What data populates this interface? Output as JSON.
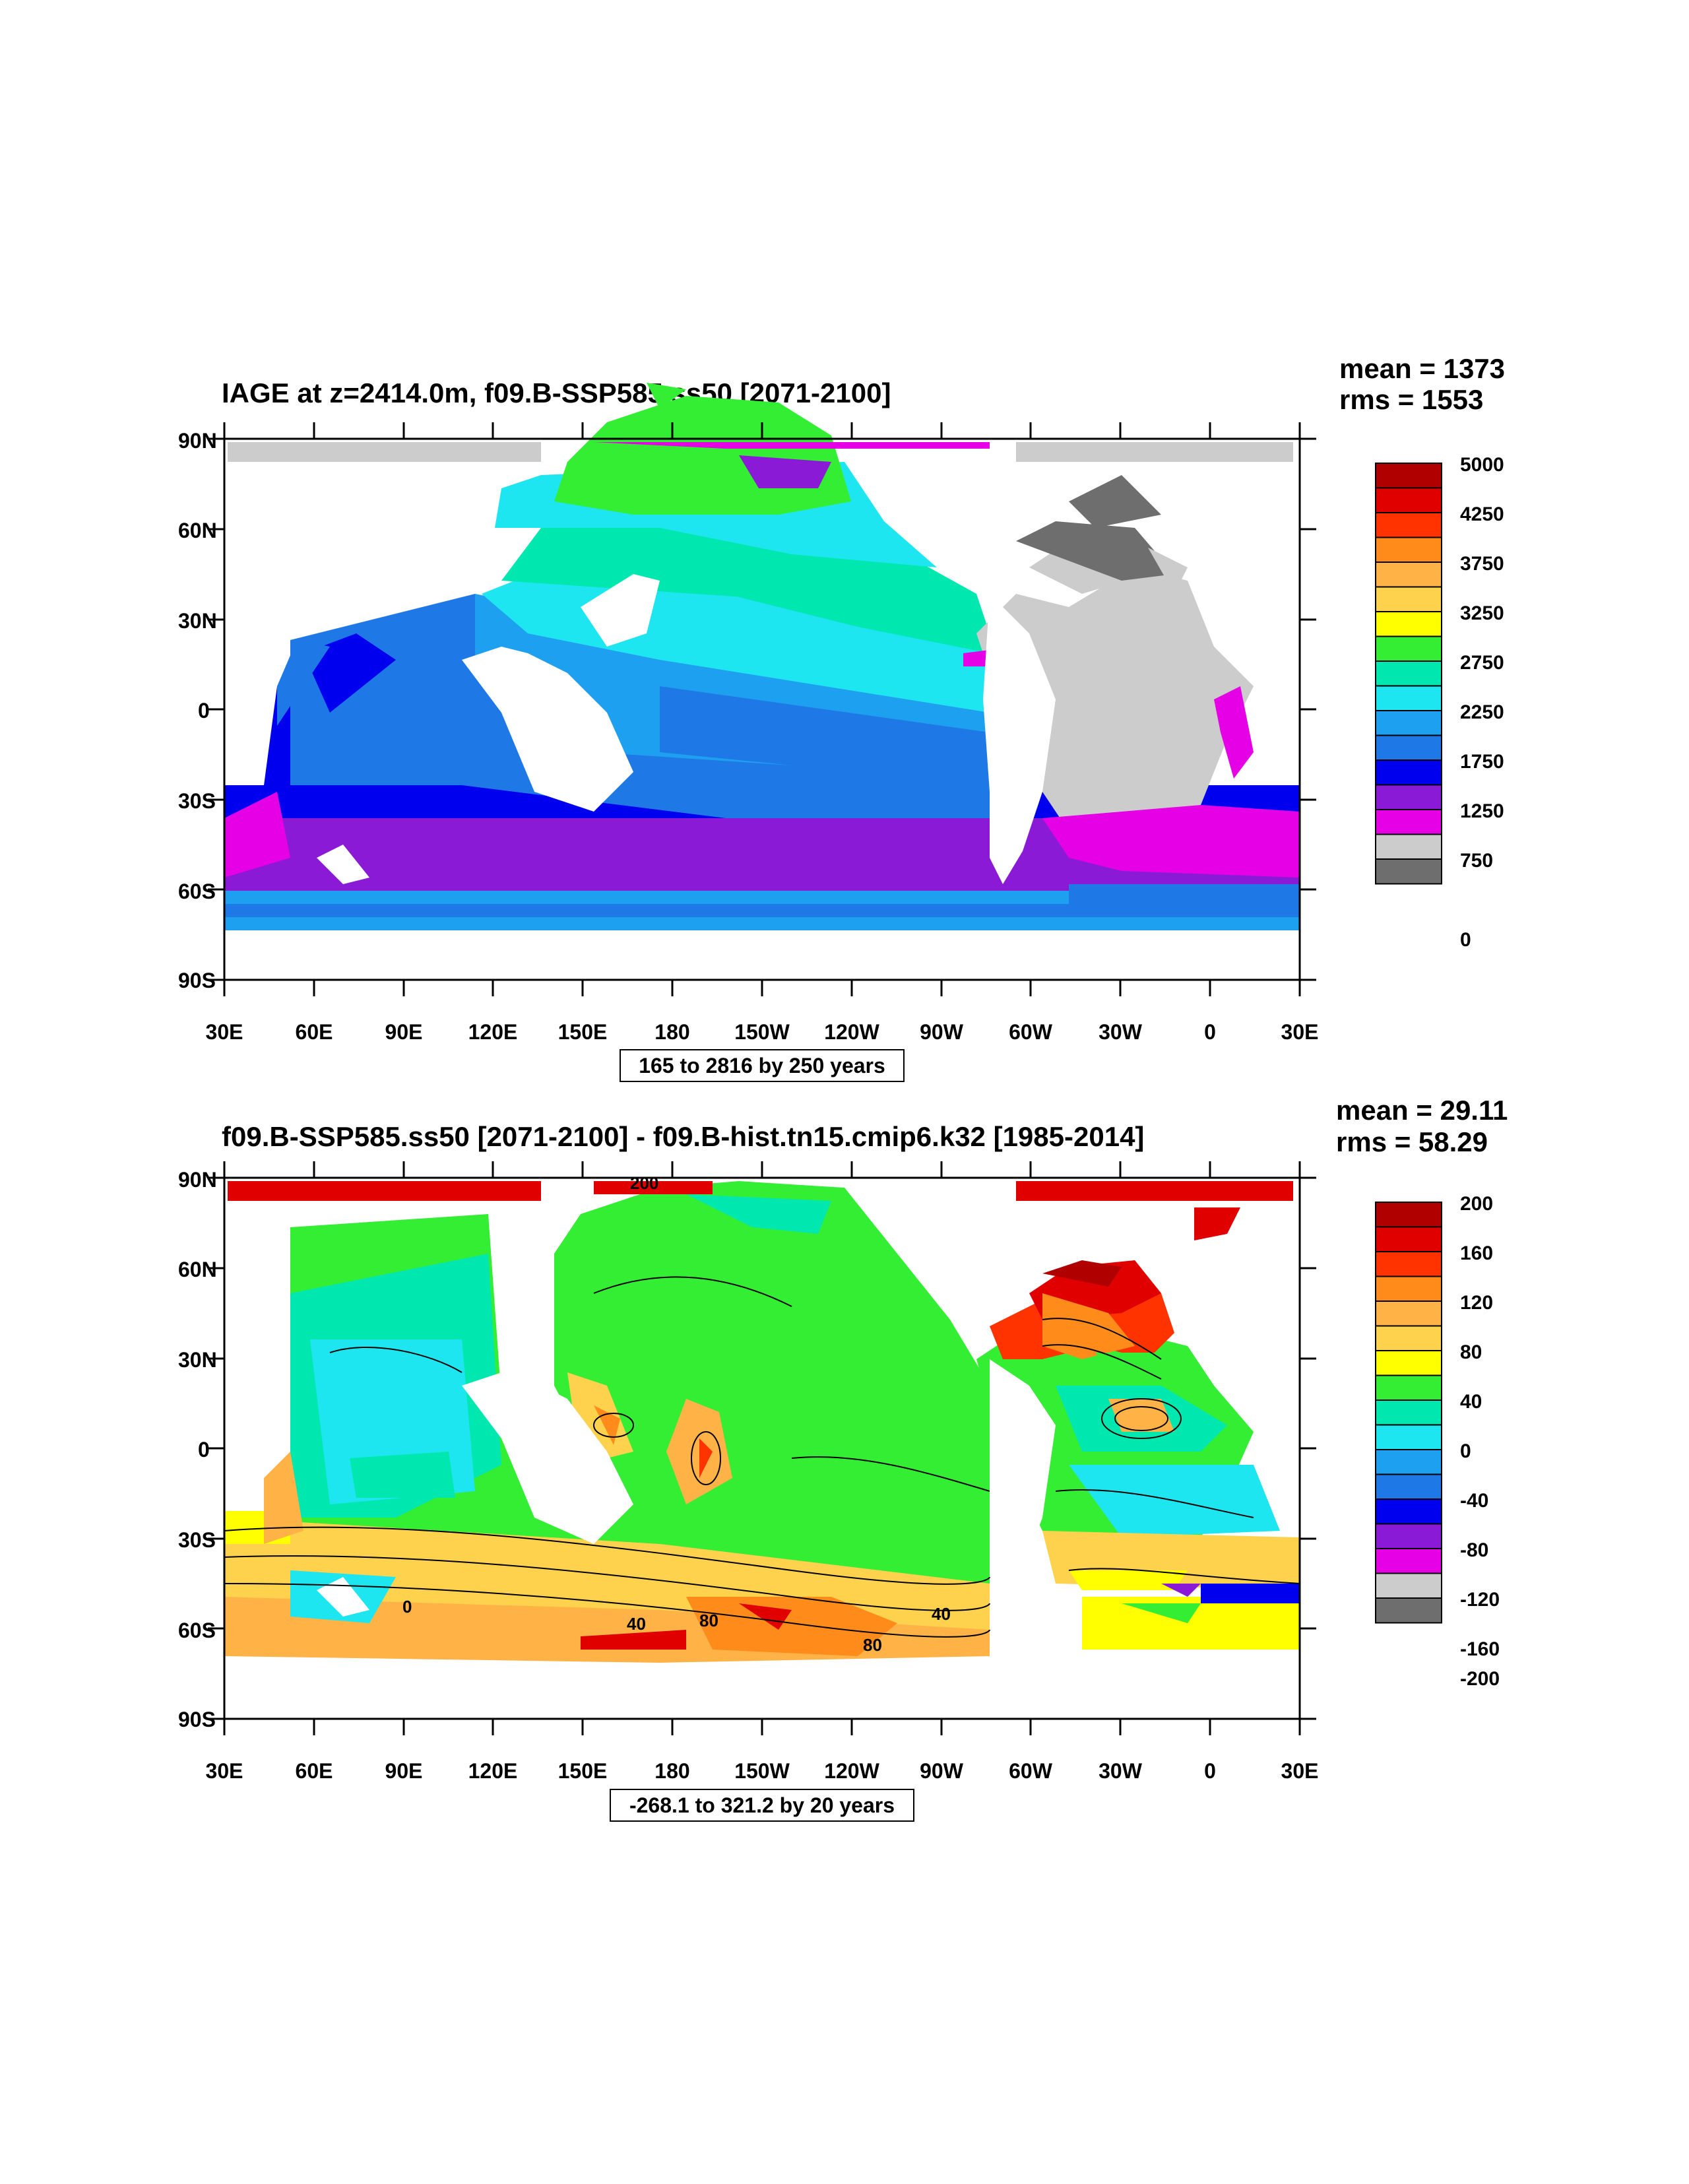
{
  "panels": [
    {
      "title": "IAGE at z=2414.0m, f09.B-SSP585.ss50 [2071-2100]",
      "stats": {
        "mean": "mean = 1373",
        "rms": "rms = 1553"
      },
      "lat_labels": [
        "90N",
        "60N",
        "30N",
        "0",
        "30S",
        "60S",
        "90S"
      ],
      "lon_labels": [
        "30E",
        "60E",
        "90E",
        "120E",
        "150E",
        "180",
        "150W",
        "120W",
        "90W",
        "60W",
        "30W",
        "0",
        "30E"
      ],
      "contour_info": "165 to 2816 by 250 years",
      "colorbar": {
        "labels": [
          "5000",
          "4250",
          "3750",
          "3250",
          "2750",
          "2250",
          "1750",
          "1250",
          "750",
          "0"
        ],
        "colors": [
          "#b00000",
          "#e00000",
          "#ff3300",
          "#ff8c1a",
          "#ffb347",
          "#ffd24d",
          "#ffff00",
          "#33ee33",
          "#00e8b0",
          "#1ee6f0",
          "#1ea0f0",
          "#1e78e6",
          "#0000ee",
          "#8a1ad6",
          "#e600e6",
          "#cccccc",
          "#6e6e6e"
        ]
      },
      "contour_labels": []
    },
    {
      "title": "f09.B-SSP585.ss50 [2071-2100] - f09.B-hist.tn15.cmip6.k32 [1985-2014]",
      "stats": {
        "mean": "mean = 29.11",
        "rms": "rms = 58.29"
      },
      "lat_labels": [
        "90N",
        "60N",
        "30N",
        "0",
        "30S",
        "60S",
        "90S"
      ],
      "lon_labels": [
        "30E",
        "60E",
        "90E",
        "120E",
        "150E",
        "180",
        "150W",
        "120W",
        "90W",
        "60W",
        "30W",
        "0",
        "30E"
      ],
      "contour_info": "-268.1 to 321.2 by 20 years",
      "colorbar": {
        "labels": [
          "200",
          "160",
          "120",
          "80",
          "40",
          "0",
          "-40",
          "-80",
          "-120",
          "-160",
          "-200"
        ],
        "colors": [
          "#b00000",
          "#e00000",
          "#ff3300",
          "#ff8c1a",
          "#ffb347",
          "#ffd24d",
          "#ffff00",
          "#33ee33",
          "#00e8b0",
          "#1ee6f0",
          "#1ea0f0",
          "#1e78e6",
          "#0000ee",
          "#8a1ad6",
          "#e600e6",
          "#cccccc",
          "#6e6e6e"
        ]
      },
      "contour_labels": [
        "200",
        "0",
        "40",
        "80",
        "40",
        "80"
      ]
    }
  ]
}
